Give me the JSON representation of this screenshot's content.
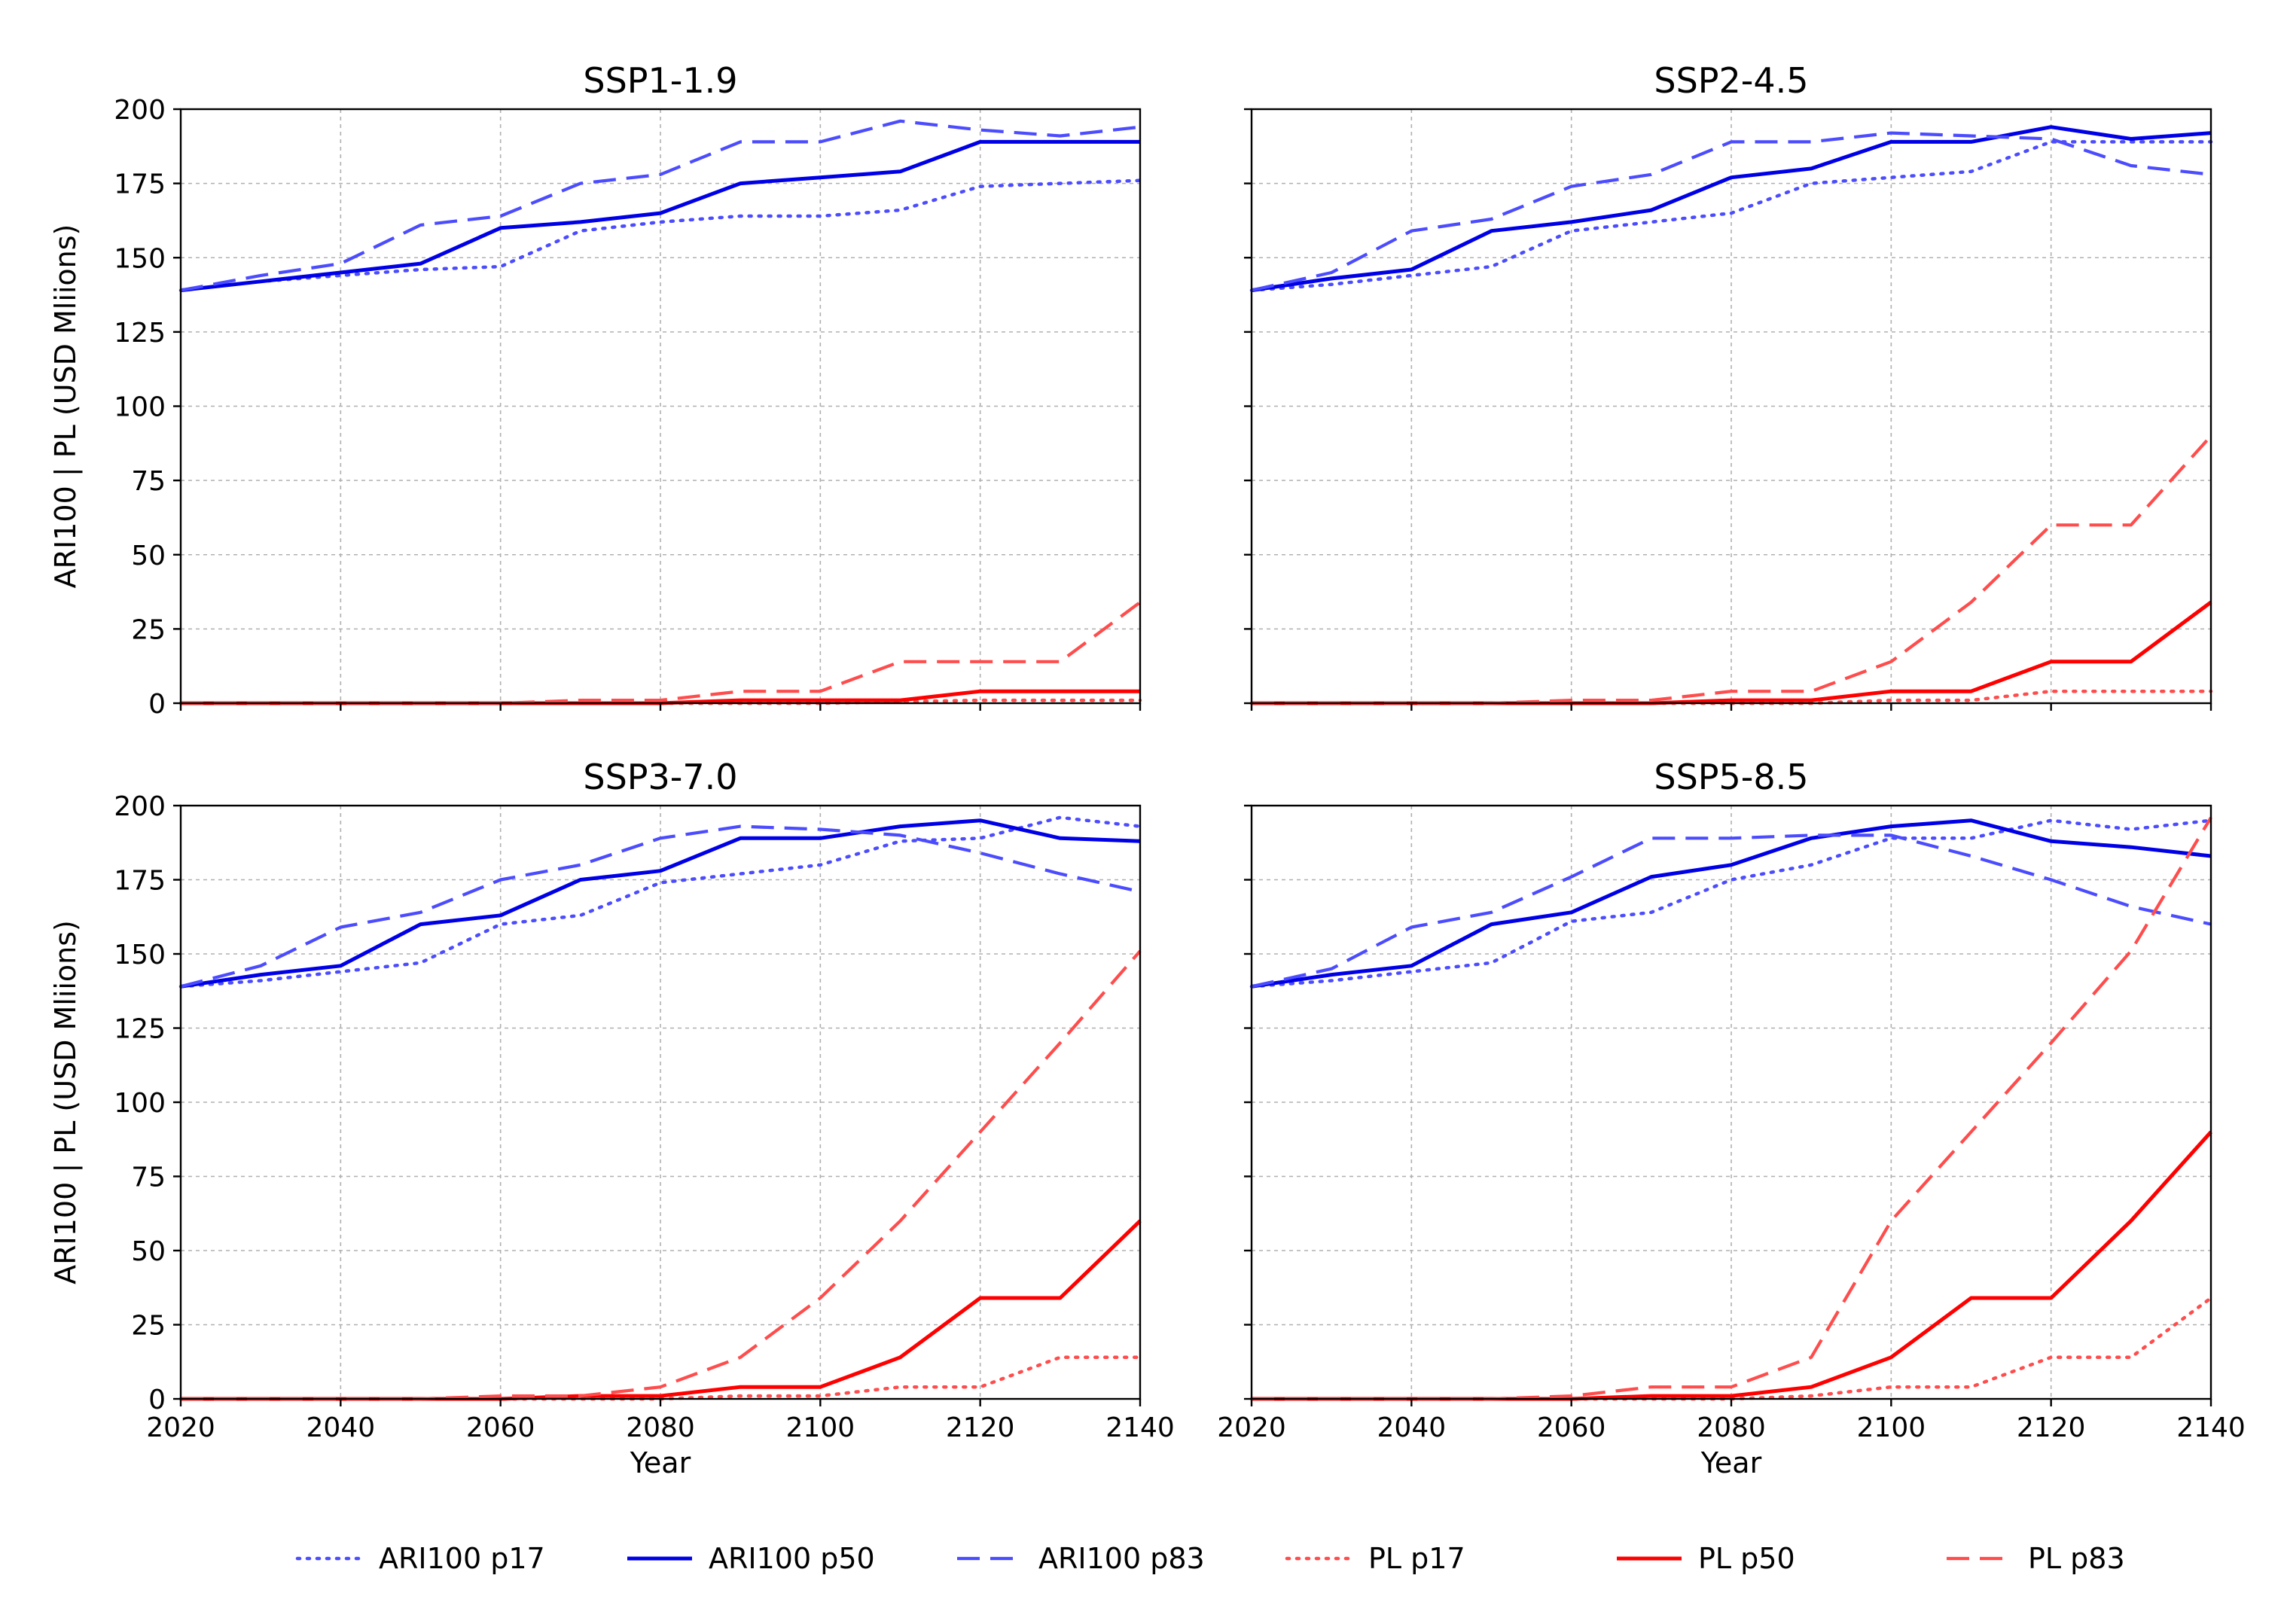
{
  "chart_data": [
    {
      "type": "line",
      "title": "SSP1-1.9",
      "xlabel": "",
      "ylabel": "ARI100 | PL (USD Mliions)",
      "xlim": [
        2020,
        2140
      ],
      "ylim": [
        0,
        200
      ],
      "x": [
        2020,
        2030,
        2040,
        2050,
        2060,
        2070,
        2080,
        2090,
        2100,
        2110,
        2120,
        2130,
        2140
      ],
      "grid": true,
      "series": [
        {
          "name": "ARI100 p17",
          "values": [
            139,
            142,
            144,
            146,
            147,
            159,
            162,
            164,
            164,
            166,
            174,
            175,
            176
          ]
        },
        {
          "name": "ARI100 p50",
          "values": [
            139,
            142,
            145,
            148,
            160,
            162,
            165,
            175,
            177,
            179,
            189,
            189,
            189
          ]
        },
        {
          "name": "ARI100 p83",
          "values": [
            139,
            144,
            148,
            161,
            164,
            175,
            178,
            189,
            189,
            196,
            193,
            191,
            194
          ]
        },
        {
          "name": "PL p17",
          "values": [
            0,
            0,
            0,
            0,
            0,
            0,
            0,
            0,
            0,
            0.5,
            1,
            1,
            1
          ]
        },
        {
          "name": "PL p50",
          "values": [
            0,
            0,
            0,
            0,
            0,
            0,
            0,
            1,
            1,
            1,
            4,
            4,
            4
          ]
        },
        {
          "name": "PL p83",
          "values": [
            0,
            0,
            0,
            0,
            0,
            1,
            1,
            4,
            4,
            14,
            14,
            14,
            34
          ]
        }
      ]
    },
    {
      "type": "line",
      "title": "SSP2-4.5",
      "xlabel": "",
      "ylabel": "",
      "xlim": [
        2020,
        2140
      ],
      "ylim": [
        0,
        200
      ],
      "x": [
        2020,
        2030,
        2040,
        2050,
        2060,
        2070,
        2080,
        2090,
        2100,
        2110,
        2120,
        2130,
        2140
      ],
      "grid": true,
      "series": [
        {
          "name": "ARI100 p17",
          "values": [
            139,
            141,
            144,
            147,
            159,
            162,
            165,
            175,
            177,
            179,
            189,
            189,
            189
          ]
        },
        {
          "name": "ARI100 p50",
          "values": [
            139,
            143,
            146,
            159,
            162,
            166,
            177,
            180,
            189,
            189,
            194,
            190,
            192
          ]
        },
        {
          "name": "ARI100 p83",
          "values": [
            139,
            145,
            159,
            163,
            174,
            178,
            189,
            189,
            192,
            191,
            190,
            181,
            178
          ]
        },
        {
          "name": "PL p17",
          "values": [
            0,
            0,
            0,
            0,
            0,
            0,
            0,
            0,
            1,
            1,
            4,
            4,
            4
          ]
        },
        {
          "name": "PL p50",
          "values": [
            0,
            0,
            0,
            0,
            0,
            0,
            1,
            1,
            4,
            4,
            14,
            14,
            34
          ]
        },
        {
          "name": "PL p83",
          "values": [
            0,
            0,
            0,
            0,
            1,
            1,
            4,
            4,
            14,
            34,
            60,
            60,
            90
          ]
        }
      ]
    },
    {
      "type": "line",
      "title": "SSP3-7.0",
      "xlabel": "Year",
      "ylabel": "ARI100 | PL (USD Mliions)",
      "xlim": [
        2020,
        2140
      ],
      "ylim": [
        0,
        200
      ],
      "x": [
        2020,
        2030,
        2040,
        2050,
        2060,
        2070,
        2080,
        2090,
        2100,
        2110,
        2120,
        2130,
        2140
      ],
      "grid": true,
      "series": [
        {
          "name": "ARI100 p17",
          "values": [
            139,
            141,
            144,
            147,
            160,
            163,
            174,
            177,
            180,
            188,
            189,
            196,
            193
          ]
        },
        {
          "name": "ARI100 p50",
          "values": [
            139,
            143,
            146,
            160,
            163,
            175,
            178,
            189,
            189,
            193,
            195,
            189,
            188
          ]
        },
        {
          "name": "ARI100 p83",
          "values": [
            139,
            146,
            159,
            164,
            175,
            180,
            189,
            193,
            192,
            190,
            184,
            177,
            171
          ]
        },
        {
          "name": "PL p17",
          "values": [
            0,
            0,
            0,
            0,
            0,
            0,
            0,
            1,
            1,
            4,
            4,
            14,
            14
          ]
        },
        {
          "name": "PL p50",
          "values": [
            0,
            0,
            0,
            0,
            0,
            1,
            1,
            4,
            4,
            14,
            34,
            34,
            60
          ]
        },
        {
          "name": "PL p83",
          "values": [
            0,
            0,
            0,
            0,
            1,
            1,
            4,
            14,
            34,
            60,
            90,
            120,
            151
          ]
        }
      ]
    },
    {
      "type": "line",
      "title": "SSP5-8.5",
      "xlabel": "Year",
      "ylabel": "",
      "xlim": [
        2020,
        2140
      ],
      "ylim": [
        0,
        200
      ],
      "x": [
        2020,
        2030,
        2040,
        2050,
        2060,
        2070,
        2080,
        2090,
        2100,
        2110,
        2120,
        2130,
        2140
      ],
      "grid": true,
      "series": [
        {
          "name": "ARI100 p17",
          "values": [
            139,
            141,
            144,
            147,
            161,
            164,
            175,
            180,
            189,
            189,
            195,
            192,
            195
          ]
        },
        {
          "name": "ARI100 p50",
          "values": [
            139,
            143,
            146,
            160,
            164,
            176,
            180,
            189,
            193,
            195,
            188,
            186,
            183
          ]
        },
        {
          "name": "ARI100 p83",
          "values": [
            139,
            145,
            159,
            164,
            176,
            189,
            189,
            190,
            190,
            183,
            175,
            166,
            160
          ]
        },
        {
          "name": "PL p17",
          "values": [
            0,
            0,
            0,
            0,
            0,
            0,
            0,
            1,
            4,
            4,
            14,
            14,
            34
          ]
        },
        {
          "name": "PL p50",
          "values": [
            0,
            0,
            0,
            0,
            0,
            1,
            1,
            4,
            14,
            34,
            34,
            60,
            90
          ]
        },
        {
          "name": "PL p83",
          "values": [
            0,
            0,
            0,
            0,
            1,
            4,
            4,
            14,
            60,
            90,
            120,
            151,
            196
          ]
        }
      ]
    }
  ],
  "axes": {
    "x_ticks": [
      2020,
      2040,
      2060,
      2080,
      2100,
      2120,
      2140
    ],
    "y_ticks": [
      0,
      25,
      50,
      75,
      100,
      125,
      150,
      175,
      200
    ]
  },
  "legend": {
    "placement": "bottom-center",
    "entries": [
      {
        "label": "ARI100 p17",
        "color": "#4c4cff",
        "style": "dotted"
      },
      {
        "label": "ARI100 p50",
        "color": "#0000e6",
        "style": "solid"
      },
      {
        "label": "ARI100 p83",
        "color": "#4c4cff",
        "style": "dashed"
      },
      {
        "label": "PL p17",
        "color": "#ff4c4c",
        "style": "dotted"
      },
      {
        "label": "PL p50",
        "color": "#ff0000",
        "style": "solid"
      },
      {
        "label": "PL p83",
        "color": "#ff4c4c",
        "style": "dashed"
      }
    ]
  }
}
